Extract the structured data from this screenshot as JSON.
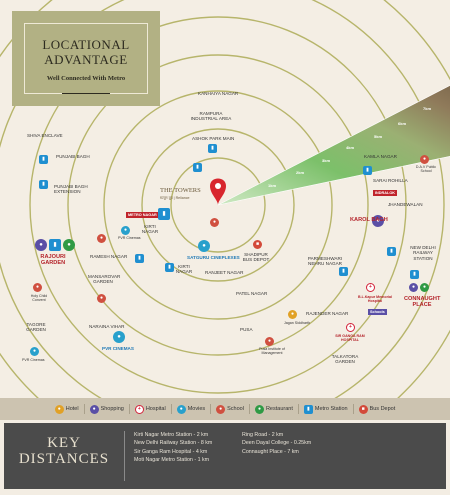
{
  "header": {
    "title_line1": "LOCATIONAL",
    "title_line2": "ADVANTAGE",
    "subtitle": "Well Connected With Metro"
  },
  "project": {
    "name": "THE TOWERS",
    "developer": "सत्युग ग्रुप | Reliance"
  },
  "colors": {
    "ring_bg": "#f4eee4",
    "plate": "#b2b184",
    "sector": "#6d5941",
    "ring_line": "#b7b56b",
    "legend_bg": "#ccc3b0",
    "key_bg": "#4b4b4b",
    "pin": "#d8262e"
  },
  "places": {
    "shiv_enclave": "SHIVA ENCLAVE",
    "punjabi_bagh": "PUNJABI BAGH",
    "punjabi_bagh_ext": "PUNJABI BAGH EXTENSION",
    "kanhaiya_nagar": "KANHAIYA NAGAR",
    "rampura": "RAMPURA INDUSTRIAL AREA",
    "ashok_park": "ASHOK PARK MAIN",
    "kamla_nagar": "KAMLA NAGAR",
    "sarai_rohilla": "SARAI ROHILLA",
    "jhandewalan": "JHANDEWALAN",
    "karol_bagh": "KAROL BAGH",
    "ndls": "NEW DELHI RAILWAY STATION",
    "kirti_nagar": "KIRTI NAGAR",
    "ramesh_nagar": "RAMESH NAGAR",
    "mansarovar": "MANSAROVAR GARDEN",
    "rajouri": "RAJOURI GARDEN",
    "naraina": "NARAINA VIHAR",
    "tagore": "TAGORE GARDEN",
    "ranjeet": "RANJEET NAGAR",
    "patel": "PATEL NAGAR",
    "pusa": "PUSA",
    "rajender": "RAJENDER NAGAR",
    "shadipur": "SHADIPUR BUS DEPOT",
    "pn_market": "PARMESHWARI NEHRU NAGAR",
    "bl_kapur": "B.L.Kapur Memorial Hospital",
    "connaught": "CONNAUGHT PLACE",
    "sgrh": "SIR GANGA RAM HOSPITAL",
    "talkatora": "TALKATORA GARDEN",
    "satguru": "Satguru Cineplexes",
    "pvr_cinemas": "PVR Cinemas",
    "pvr_cinemas2": "PVR Cinemas",
    "pvr_cinemas3": "PVR Cinemas",
    "holy_child": "Holy Child Convent",
    "pusa_inst": "Pusa Institute of Management",
    "jagan": "Jagan Siddharth",
    "metro_nagar": "METRO NAGAR",
    "kirti_nagar2": "KIRTI NAGAR",
    "indralok": "INDRALOK",
    "dav": "D.A.V Public School",
    "schools": "Schools"
  },
  "distances": {
    "d1": "1km",
    "d2": "2km",
    "d3": "3km",
    "d4": "4km",
    "d5": "5km",
    "d6": "6km",
    "d7": "7km"
  },
  "legend": [
    {
      "label": "Hotel",
      "icon": "hotel-icon"
    },
    {
      "label": "Shopping",
      "icon": "shopping-icon"
    },
    {
      "label": "Hospital",
      "icon": "hospital-icon"
    },
    {
      "label": "Movies",
      "icon": "movies-icon"
    },
    {
      "label": "School",
      "icon": "school-icon"
    },
    {
      "label": "Restaurant",
      "icon": "restaurant-icon"
    },
    {
      "label": "Metro Station",
      "icon": "metro-icon"
    },
    {
      "label": "Bus Depot",
      "icon": "bus-icon"
    }
  ],
  "key_distances": {
    "title_line1": "KEY",
    "title_line2": "DISTANCES",
    "col1": [
      "Kirti Nagar Metro Station - 2 km",
      "New Delhi Railway Station - 8 km",
      "Sir Ganga Ram Hospital - 4 km",
      "Moti Nagar Metro Station - 1 km"
    ],
    "col2": [
      "Ring Road - 2 km",
      "Deen Dayal College - 0.25km",
      "Connaught Place - 7 km"
    ]
  }
}
